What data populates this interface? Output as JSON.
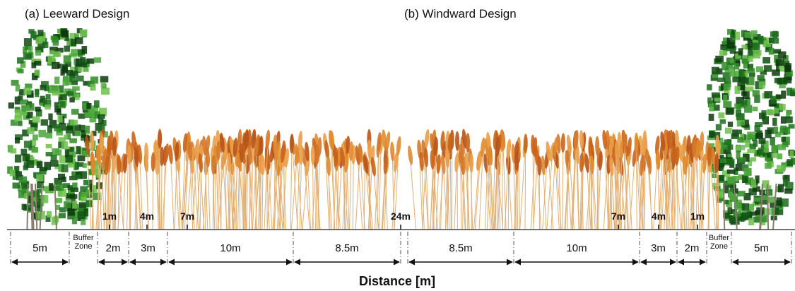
{
  "titles": {
    "leeward": "(a) Leeward Design",
    "windward": "(b) Windward Design"
  },
  "markers": [
    "1m",
    "4m",
    "7m",
    "24m",
    "7m",
    "4m",
    "1m"
  ],
  "segments": [
    "5m",
    "Buffer Zone",
    "2m",
    "3m",
    "10m",
    "8.5m",
    "8.5m",
    "10m",
    "3m",
    "2m",
    "Buffer Zone",
    "5m"
  ],
  "axis_label": "Distance [m]"
}
